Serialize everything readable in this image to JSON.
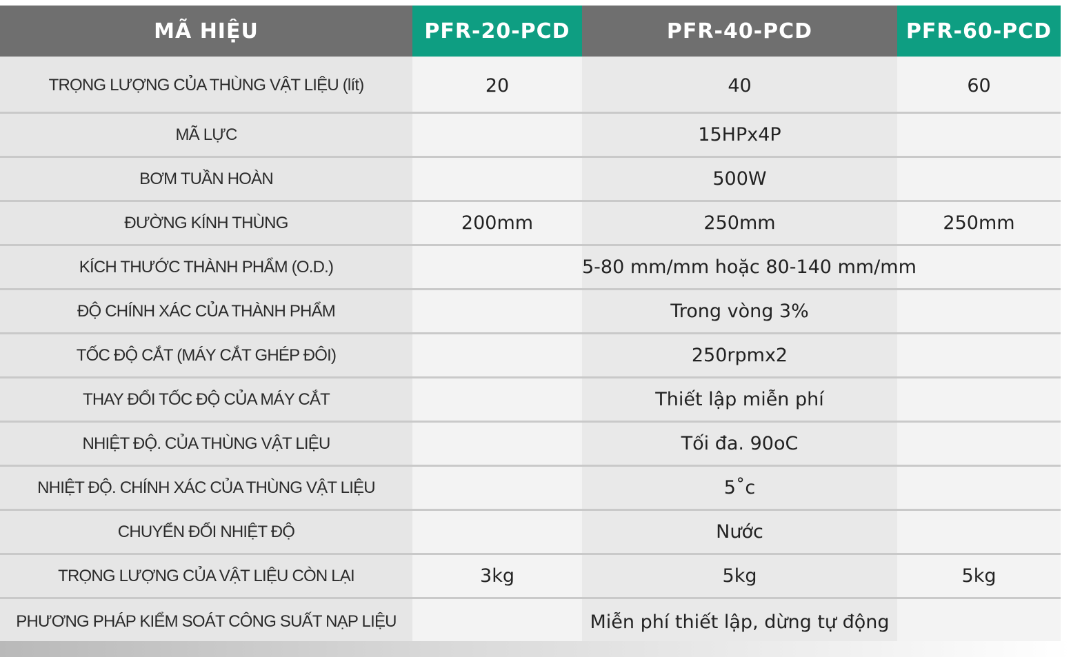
{
  "header": {
    "label_col": "MÃ HIỆU",
    "models": [
      "PFR-20-PCD",
      "PFR-40-PCD",
      "PFR-60-PCD"
    ]
  },
  "rows": [
    {
      "label": "TRỌNG LƯỢNG CỦA THÙNG VẬT LIỆU (lít)",
      "v20": "20",
      "v40": "40",
      "v60": "60"
    },
    {
      "label": "MÃ LỰC",
      "shared": "15HPx4P"
    },
    {
      "label": "BƠM TUẦN HOÀN",
      "shared": "500W"
    },
    {
      "label": "ĐƯỜNG KÍNH THÙNG",
      "v20": "200mm",
      "v40": "250mm",
      "v60": "250mm"
    },
    {
      "label": "KÍCH THƯỚC THÀNH PHẨM (O.D.)",
      "shared": "5-80 mm/mm hoặc 80-140 mm/mm"
    },
    {
      "label": "ĐỘ CHÍNH XÁC CỦA THÀNH PHẨM",
      "shared": "Trong vòng 3%"
    },
    {
      "label": "TỐC ĐỘ CẮT (MÁY CẮT GHÉP ĐÔI)",
      "shared": "250rpmx2"
    },
    {
      "label": "THAY ĐỔI TỐC ĐỘ CỦA MÁY CẮT",
      "shared": "Thiết lập miễn phí"
    },
    {
      "label": "NHIỆT ĐỘ. CỦA THÙNG VẬT LIỆU",
      "shared": "Tối đa. 90oC"
    },
    {
      "label": "NHIỆT ĐỘ. CHÍNH XÁC CỦA THÙNG VẬT LIỆU",
      "shared": "5˚c"
    },
    {
      "label": "CHUYỂN ĐỔI NHIỆT ĐỘ",
      "shared": "Nước"
    },
    {
      "label": "TRỌNG LƯỢNG CỦA VẬT LIỆU CÒN LẠI",
      "v20": "3kg",
      "v40": "5kg",
      "v60": "5kg"
    },
    {
      "label": "PHƯƠNG PHÁP KIỂM SOÁT CÔNG SUẤT NẠP LIỆU",
      "shared": "Miễn phí thiết lập, dừng tự động"
    }
  ],
  "colors": {
    "header_gray": "#6f6f6f",
    "header_green": "#0e9e82",
    "label_bg": "#e6e6e6",
    "cell_light": "#f3f3f3",
    "cell_mid": "#e9e9e9",
    "divider": "#c9c9c9"
  }
}
